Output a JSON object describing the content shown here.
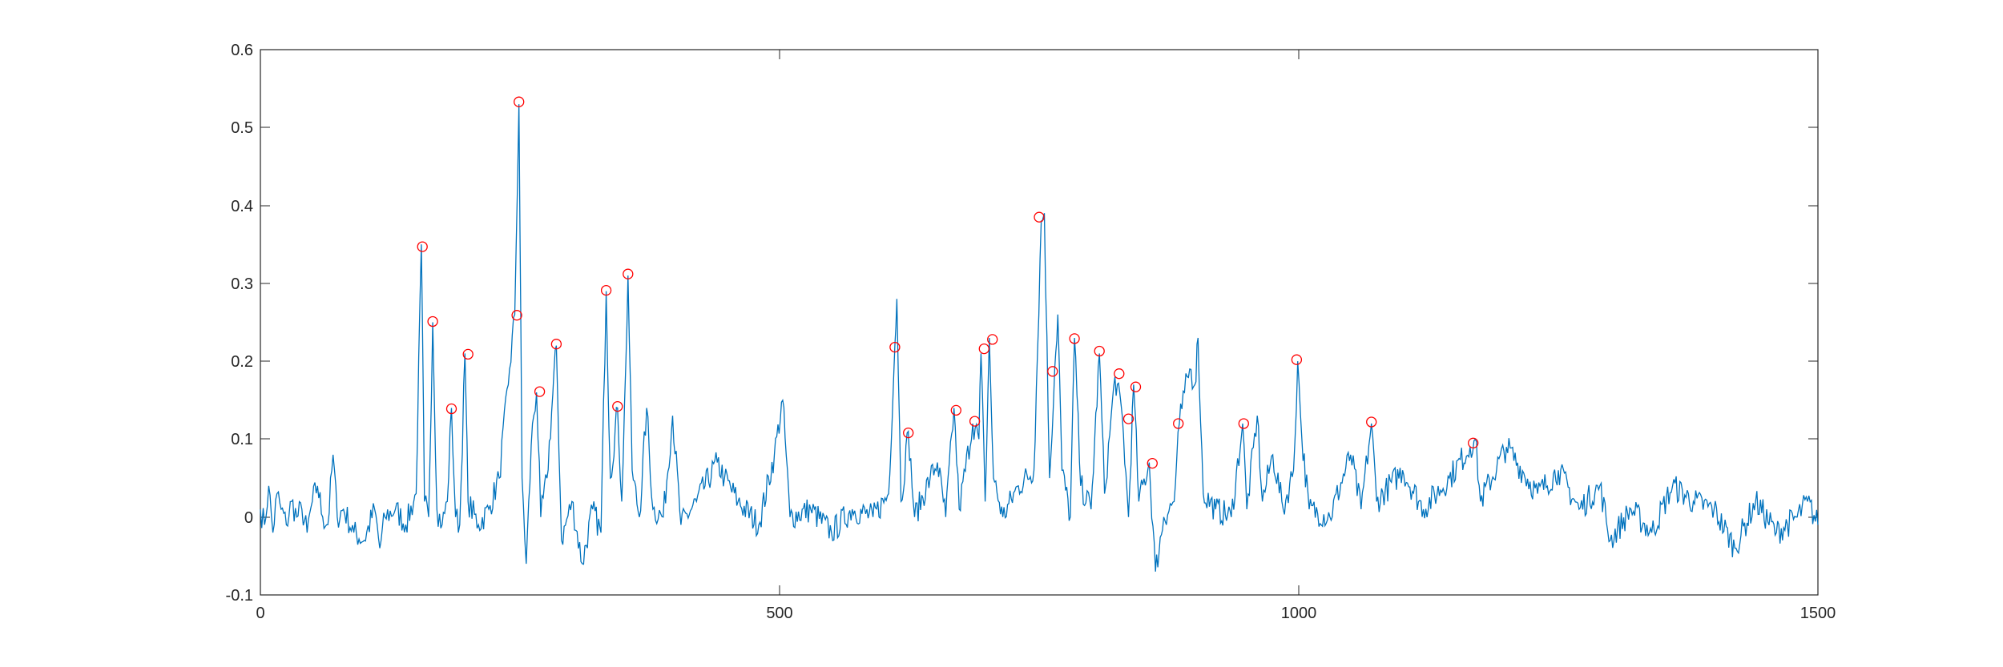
{
  "chart_data": {
    "type": "line",
    "title": "",
    "xlabel": "",
    "ylabel": "",
    "xlim": [
      0,
      1500
    ],
    "ylim": [
      -0.1,
      0.6
    ],
    "x_ticks": [
      0,
      500,
      1000,
      1500
    ],
    "y_ticks": [
      -0.1,
      0,
      0.1,
      0.2,
      0.3,
      0.4,
      0.5,
      0.6
    ],
    "x_tick_labels": [
      "0",
      "500",
      "1000",
      "1500"
    ],
    "y_tick_labels": [
      "-0.1",
      "0",
      "0.1",
      "0.2",
      "0.3",
      "0.4",
      "0.5",
      "0.6"
    ],
    "grid": false,
    "legend": "none",
    "colors": {
      "signal": "#0072BD",
      "peaks": "#FF0000",
      "axes": "#262626"
    },
    "signal_points": [
      [
        0,
        0.01
      ],
      [
        4,
        -0.01
      ],
      [
        8,
        0.04
      ],
      [
        12,
        -0.02
      ],
      [
        16,
        0.03
      ],
      [
        20,
        0.01
      ],
      [
        25,
        -0.01
      ],
      [
        30,
        0.02
      ],
      [
        35,
        0.0
      ],
      [
        40,
        0.01
      ],
      [
        45,
        -0.02
      ],
      [
        50,
        0.02
      ],
      [
        55,
        0.04
      ],
      [
        60,
        0.0
      ],
      [
        65,
        -0.01
      ],
      [
        70,
        0.08
      ],
      [
        74,
        0.0
      ],
      [
        80,
        0.01
      ],
      [
        90,
        -0.02
      ],
      [
        100,
        -0.03
      ],
      [
        110,
        0.01
      ],
      [
        115,
        -0.04
      ],
      [
        120,
        0.0
      ],
      [
        130,
        0.01
      ],
      [
        140,
        -0.01
      ],
      [
        150,
        0.03
      ],
      [
        155,
        0.35
      ],
      [
        158,
        0.02
      ],
      [
        162,
        0.0
      ],
      [
        166,
        0.25
      ],
      [
        170,
        0.01
      ],
      [
        175,
        -0.01
      ],
      [
        180,
        0.02
      ],
      [
        184,
        0.14
      ],
      [
        188,
        0.0
      ],
      [
        192,
        -0.01
      ],
      [
        197,
        0.21
      ],
      [
        200,
        0.02
      ],
      [
        210,
        -0.01
      ],
      [
        220,
        0.01
      ],
      [
        230,
        0.05
      ],
      [
        240,
        0.19
      ],
      [
        245,
        0.26
      ],
      [
        249,
        0.53
      ],
      [
        252,
        0.05
      ],
      [
        256,
        -0.06
      ],
      [
        262,
        0.12
      ],
      [
        266,
        0.16
      ],
      [
        270,
        0.0
      ],
      [
        276,
        0.05
      ],
      [
        285,
        0.22
      ],
      [
        290,
        -0.03
      ],
      [
        300,
        0.02
      ],
      [
        310,
        -0.06
      ],
      [
        320,
        0.01
      ],
      [
        328,
        -0.02
      ],
      [
        333,
        0.29
      ],
      [
        337,
        0.05
      ],
      [
        344,
        0.14
      ],
      [
        348,
        0.02
      ],
      [
        352,
        0.2
      ],
      [
        354,
        0.31
      ],
      [
        358,
        0.06
      ],
      [
        365,
        0.0
      ],
      [
        372,
        0.14
      ],
      [
        378,
        0.01
      ],
      [
        388,
        0.0
      ],
      [
        397,
        0.13
      ],
      [
        405,
        -0.01
      ],
      [
        420,
        0.02
      ],
      [
        440,
        0.07
      ],
      [
        447,
        0.05
      ],
      [
        460,
        0.02
      ],
      [
        480,
        -0.01
      ],
      [
        495,
        0.08
      ],
      [
        503,
        0.15
      ],
      [
        510,
        0.0
      ],
      [
        530,
        0.01
      ],
      [
        550,
        -0.02
      ],
      [
        570,
        0.01
      ],
      [
        590,
        0.0
      ],
      [
        605,
        0.03
      ],
      [
        611,
        0.22
      ],
      [
        613,
        0.28
      ],
      [
        617,
        0.02
      ],
      [
        624,
        0.11
      ],
      [
        630,
        0.0
      ],
      [
        645,
        0.05
      ],
      [
        652,
        0.07
      ],
      [
        660,
        0.0
      ],
      [
        668,
        0.14
      ],
      [
        673,
        0.01
      ],
      [
        686,
        0.12
      ],
      [
        692,
        0.1
      ],
      [
        694,
        0.21
      ],
      [
        698,
        0.02
      ],
      [
        702,
        0.23
      ],
      [
        706,
        0.05
      ],
      [
        715,
        0.0
      ],
      [
        730,
        0.04
      ],
      [
        745,
        0.06
      ],
      [
        752,
        0.38
      ],
      [
        755,
        0.39
      ],
      [
        760,
        0.05
      ],
      [
        765,
        0.19
      ],
      [
        768,
        0.26
      ],
      [
        772,
        0.06
      ],
      [
        780,
        0.0
      ],
      [
        784,
        0.23
      ],
      [
        790,
        0.04
      ],
      [
        800,
        0.01
      ],
      [
        808,
        0.21
      ],
      [
        813,
        0.03
      ],
      [
        823,
        0.18
      ],
      [
        830,
        0.13
      ],
      [
        836,
        0.0
      ],
      [
        841,
        0.17
      ],
      [
        846,
        0.02
      ],
      [
        856,
        0.07
      ],
      [
        862,
        -0.07
      ],
      [
        870,
        0.0
      ],
      [
        880,
        0.02
      ],
      [
        885,
        0.12
      ],
      [
        890,
        0.16
      ],
      [
        895,
        0.19
      ],
      [
        900,
        0.17
      ],
      [
        903,
        0.23
      ],
      [
        908,
        0.03
      ],
      [
        920,
        0.01
      ],
      [
        935,
        0.0
      ],
      [
        946,
        0.12
      ],
      [
        950,
        0.01
      ],
      [
        960,
        0.13
      ],
      [
        965,
        0.02
      ],
      [
        975,
        0.08
      ],
      [
        985,
        0.01
      ],
      [
        995,
        0.06
      ],
      [
        999,
        0.2
      ],
      [
        1003,
        0.1
      ],
      [
        1010,
        0.01
      ],
      [
        1030,
        0.0
      ],
      [
        1050,
        0.08
      ],
      [
        1060,
        0.01
      ],
      [
        1070,
        0.12
      ],
      [
        1075,
        0.02
      ],
      [
        1100,
        0.06
      ],
      [
        1120,
        0.01
      ],
      [
        1145,
        0.05
      ],
      [
        1165,
        0.09
      ],
      [
        1170,
        0.1
      ],
      [
        1175,
        0.02
      ],
      [
        1200,
        0.09
      ],
      [
        1230,
        0.03
      ],
      [
        1250,
        0.06
      ],
      [
        1270,
        0.01
      ],
      [
        1290,
        0.04
      ],
      [
        1300,
        -0.03
      ],
      [
        1320,
        0.01
      ],
      [
        1340,
        -0.02
      ],
      [
        1360,
        0.04
      ],
      [
        1380,
        0.02
      ],
      [
        1400,
        0.01
      ],
      [
        1420,
        -0.04
      ],
      [
        1440,
        0.02
      ],
      [
        1460,
        -0.02
      ],
      [
        1480,
        0.0
      ],
      [
        1490,
        0.02
      ],
      [
        1500,
        -0.01
      ]
    ],
    "peaks": [
      [
        156,
        0.347
      ],
      [
        166,
        0.251
      ],
      [
        184,
        0.139
      ],
      [
        200,
        0.209
      ],
      [
        247,
        0.259
      ],
      [
        249,
        0.533
      ],
      [
        269,
        0.161
      ],
      [
        285,
        0.222
      ],
      [
        333,
        0.291
      ],
      [
        344,
        0.142
      ],
      [
        354,
        0.312
      ],
      [
        611,
        0.218
      ],
      [
        624,
        0.108
      ],
      [
        670,
        0.137
      ],
      [
        688,
        0.123
      ],
      [
        697,
        0.216
      ],
      [
        705,
        0.228
      ],
      [
        750,
        0.385
      ],
      [
        763,
        0.187
      ],
      [
        784,
        0.229
      ],
      [
        808,
        0.213
      ],
      [
        827,
        0.184
      ],
      [
        836,
        0.126
      ],
      [
        843,
        0.167
      ],
      [
        859,
        0.069
      ],
      [
        884,
        0.12
      ],
      [
        947,
        0.12
      ],
      [
        998,
        0.202
      ],
      [
        1070,
        0.122
      ],
      [
        1168,
        0.095
      ]
    ]
  }
}
